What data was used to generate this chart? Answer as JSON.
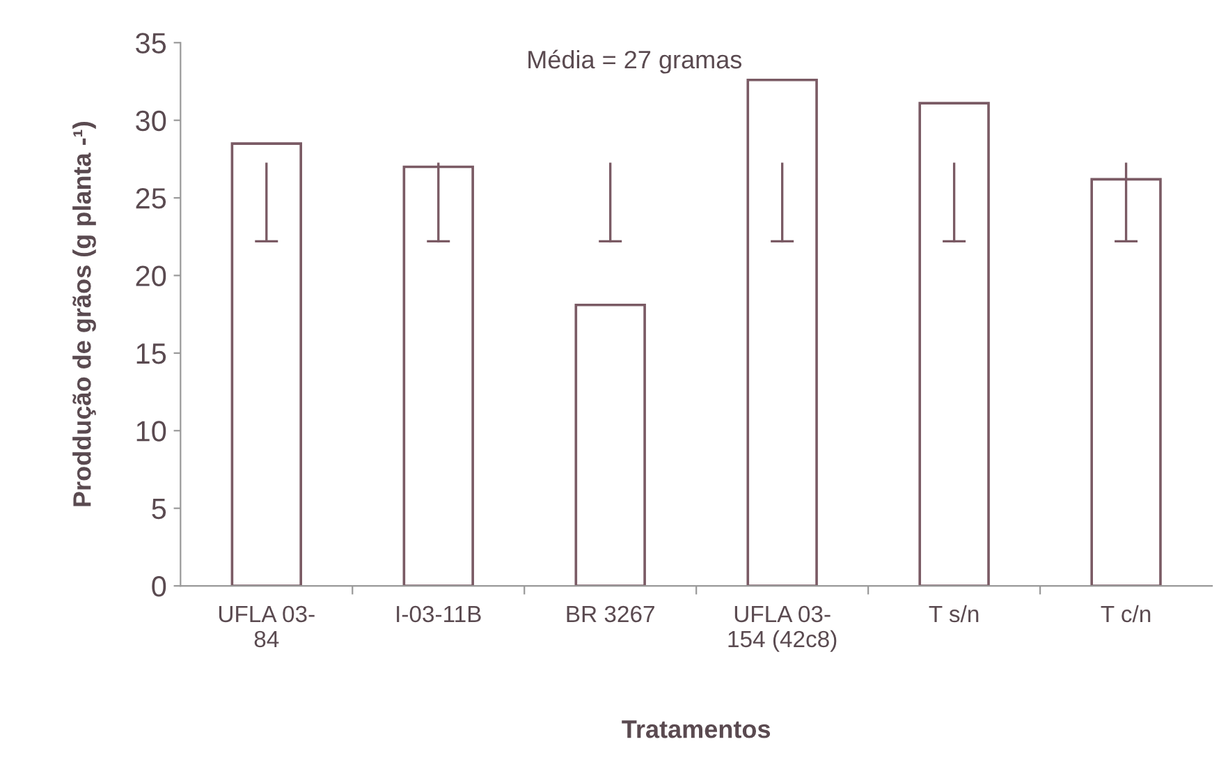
{
  "chart_data": {
    "type": "bar",
    "categories": [
      "UFLA 03-\n84",
      "I-03-11B",
      "BR 3267",
      "UFLA 03-\n154 (42c8)",
      "T s/n",
      "T c/n"
    ],
    "values": [
      28.5,
      27.0,
      18.1,
      32.6,
      31.1,
      26.2
    ],
    "errors": [
      [
        22.2,
        27.2
      ],
      [
        22.2,
        27.2
      ],
      [
        22.2,
        27.2
      ],
      [
        22.2,
        27.2
      ],
      [
        22.2,
        27.2
      ],
      [
        22.2,
        27.2
      ]
    ],
    "color": "#7a5a64",
    "ylim": [
      0,
      35
    ],
    "yticks": [
      0,
      5,
      10,
      15,
      20,
      25,
      30,
      35
    ],
    "xlabel": "Tratamentos",
    "ylabel": "Proddução de grãos (g planta -¹)",
    "annotations": [
      "Média = 27 gramas"
    ],
    "grid": false,
    "legend": false
  }
}
